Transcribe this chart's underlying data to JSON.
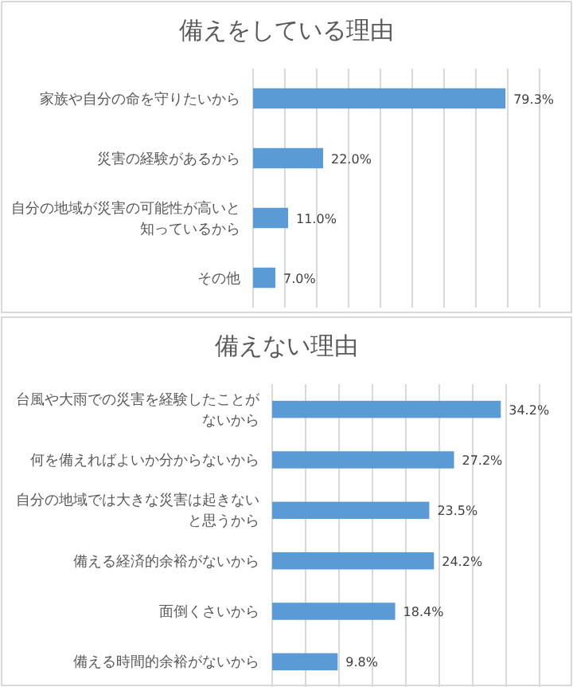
{
  "chart_data": [
    {
      "type": "bar",
      "orientation": "horizontal",
      "title": "備えをしている理由",
      "categories": [
        "家族や自分の命を守りたいから",
        "災害の経験があるから",
        "自分の地域が災害の可能性が高いと知っているから",
        "その他"
      ],
      "values": [
        79.3,
        22.0,
        11.0,
        7.0
      ],
      "value_labels": [
        "79.3%",
        "22.0%",
        "11.0%",
        "7.0%"
      ],
      "color": "#5b9bd5",
      "xlim": [
        0,
        90
      ],
      "xticks": [
        0,
        10,
        20,
        30,
        40,
        50,
        60,
        70,
        80,
        90
      ],
      "grid": "x",
      "tick_labels": false
    },
    {
      "type": "bar",
      "orientation": "horizontal",
      "title": "備えない理由",
      "categories": [
        "台風や大雨での災害を経験したことがないから",
        "何を備えればよいか分からないから",
        "自分の地域では大きな災害は起きないと思うから",
        "備える経済的余裕がないから",
        "面倒くさいから",
        "備える時間的余裕がないから"
      ],
      "values": [
        34.2,
        27.2,
        23.5,
        24.2,
        18.4,
        9.8
      ],
      "value_labels": [
        "34.2%",
        "27.2%",
        "23.5%",
        "24.2%",
        "18.4%",
        "9.8%"
      ],
      "color": "#5b9bd5",
      "xlim": [
        0,
        40
      ],
      "xticks": [
        0,
        5,
        10,
        15,
        20,
        25,
        30,
        35,
        40
      ],
      "grid": "x",
      "tick_labels": false
    }
  ]
}
